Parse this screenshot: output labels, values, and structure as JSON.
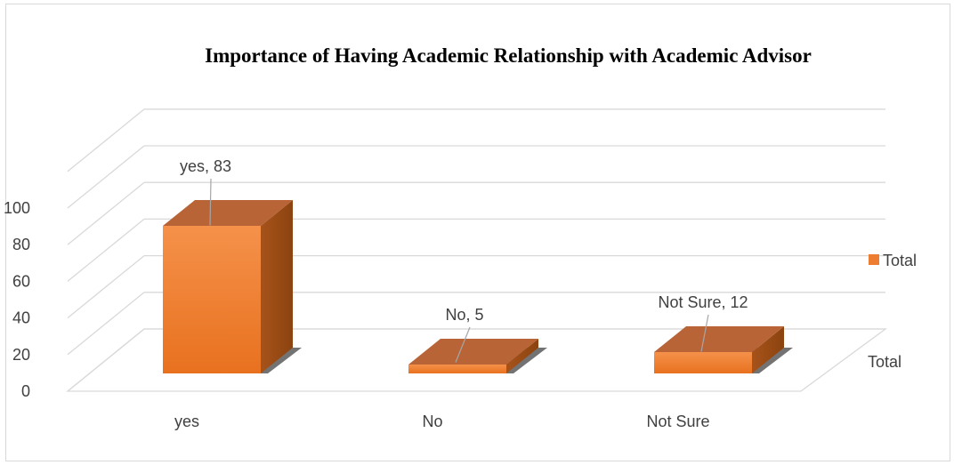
{
  "chart_data": {
    "type": "bar",
    "title": "Importance of Having Academic Relationship with Academic Advisor",
    "categories": [
      "yes",
      "No",
      "Not Sure"
    ],
    "series": [
      {
        "name": "Total",
        "values": [
          83,
          5,
          12
        ]
      }
    ],
    "data_labels": [
      "yes, 83",
      "No, 5",
      "Not Sure, 12"
    ],
    "ylim": [
      0,
      100
    ],
    "yticks": [
      "0",
      "20",
      "40",
      "60",
      "80",
      "100"
    ],
    "ytick_values": [
      0,
      20,
      40,
      60,
      80,
      100
    ],
    "depth_axis_label": "Total",
    "legend": {
      "position": "right",
      "entries": [
        "Total"
      ]
    },
    "grid": true,
    "style": "3d-column",
    "colors": {
      "bar_front": "#f07f2b",
      "bar_top": "#b86437",
      "bar_side": "#9e4b12",
      "grid": "#d9d9d9",
      "legend_swatch": "#ed7d31"
    }
  }
}
